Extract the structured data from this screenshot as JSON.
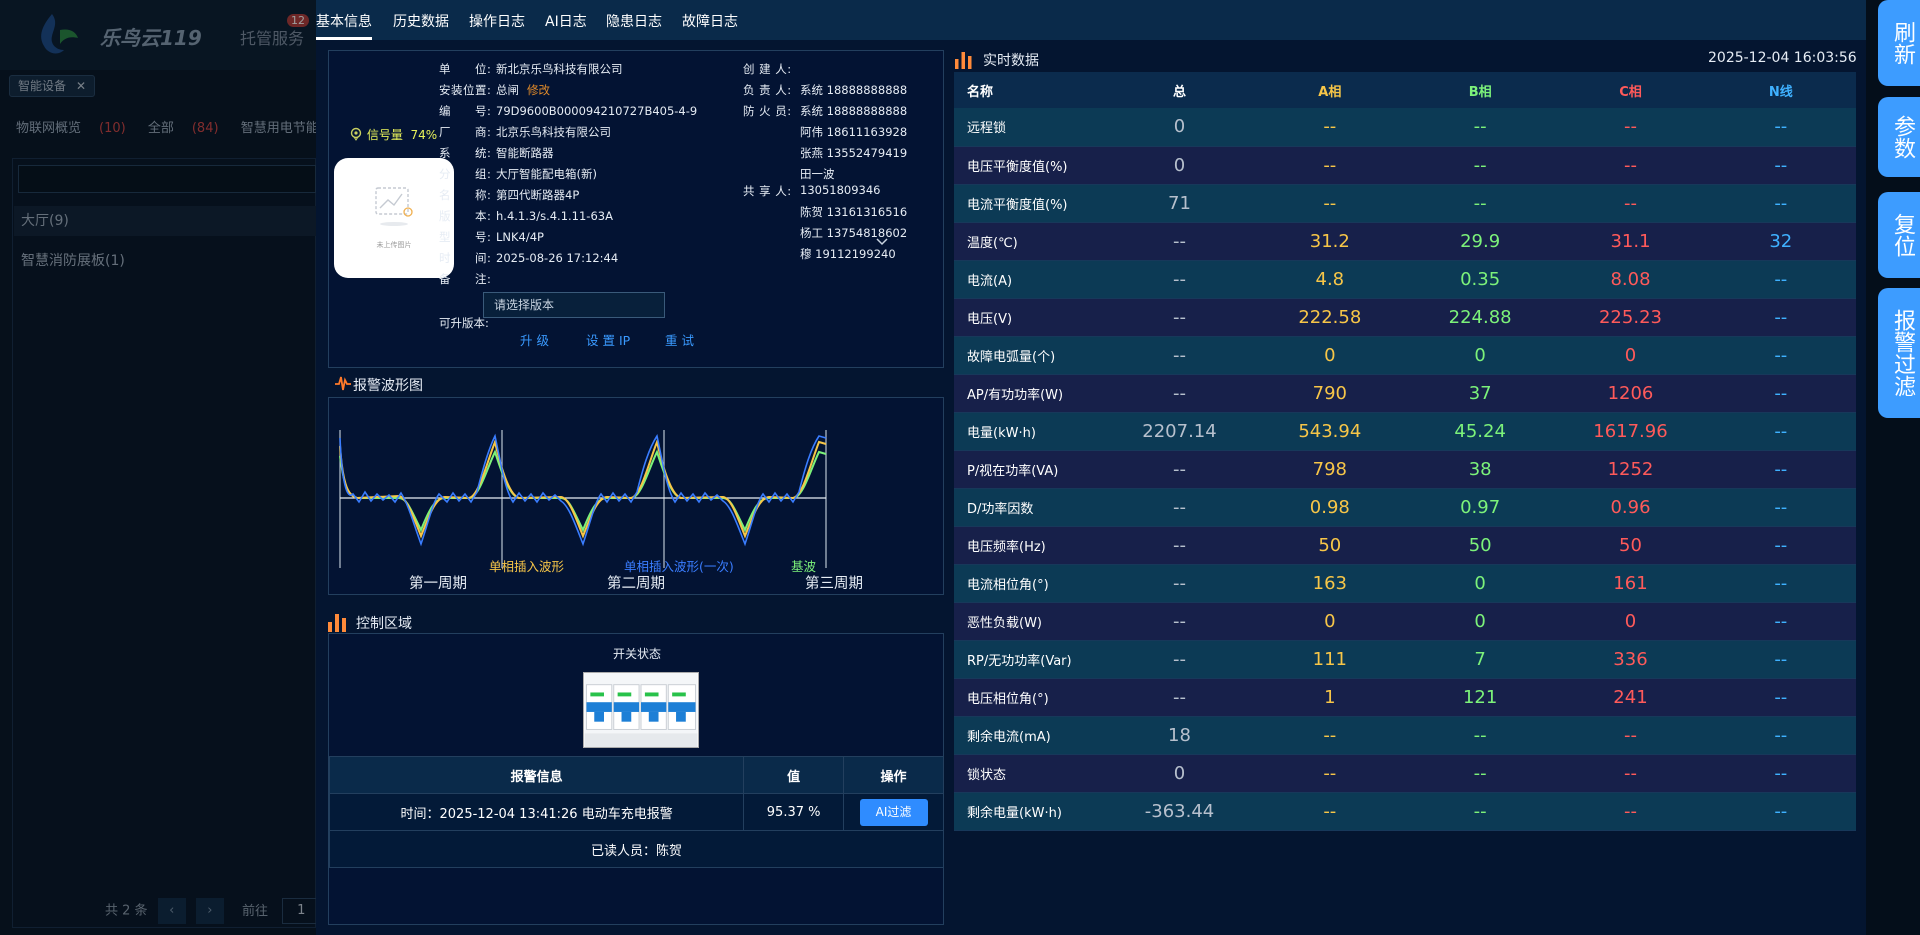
{
  "background": {
    "brand": "乐鸟云119",
    "nav_item": "托管服务",
    "nav_count": "12",
    "tag": "智能设备",
    "tabs": [
      {
        "label": "物联网概览",
        "count": "(10)"
      },
      {
        "label": "全部",
        "count": "(84)"
      },
      {
        "label": "智慧用电节能",
        "count": ""
      }
    ],
    "group": "大厅(9)",
    "item": "智慧消防展板(1)",
    "pager": {
      "total": "共 2 条",
      "goto": "前往",
      "page": "1"
    }
  },
  "tabs": [
    "基本信息",
    "历史数据",
    "操作日志",
    "AI日志",
    "隐患日志",
    "故障日志"
  ],
  "active_tab": "基本信息",
  "device": {
    "signal_label": "信号量",
    "signal_value": "74%",
    "photo_caption": "未上传图片",
    "fields": [
      {
        "label": "单　　位:",
        "value": "新北京乐鸟科技有限公司"
      },
      {
        "label": "安装位置:",
        "value": "总闸"
      },
      {
        "label": "编　　号:",
        "value": "79D9600B000094210727B405-4-9"
      },
      {
        "label": "厂　　商:",
        "value": "北京乐鸟科技有限公司"
      },
      {
        "label": "系　　统:",
        "value": "智能断路器"
      },
      {
        "label": "分　　组:",
        "value": "大厅智能配电箱(新)"
      },
      {
        "label": "名　　称:",
        "value": "第四代断路器4P"
      },
      {
        "label": "版　　本:",
        "value": "h.4.1.3/s.4.1.11-63A"
      },
      {
        "label": "型　　号:",
        "value": "LNK4/4P"
      },
      {
        "label": "时　　间:",
        "value": "2025-08-26 17:12:44"
      },
      {
        "label": "备　　注:",
        "value": ""
      }
    ],
    "edit_link": "修改",
    "right_fields": [
      {
        "label": "创 建 人:",
        "value": ""
      },
      {
        "label": "负 责 人:",
        "value": "系统 18888888888"
      },
      {
        "label": "防 火 员:",
        "value": "系统 18888888888"
      }
    ],
    "fire_officers_more": [
      "阿伟 18611163928",
      "张燕 13552479419",
      "田一波",
      "13051809346"
    ],
    "sharer_label": "共 享 人:",
    "sharers": [
      "陈贺 13161316516",
      "杨工 13754818602",
      "穆 19112199240"
    ],
    "upgradable_label": "可升版本:",
    "version_placeholder": "请选择版本",
    "actions": [
      "升 级",
      "设 置 IP",
      "重 试"
    ]
  },
  "waveform": {
    "title": "报警波形图",
    "legend": [
      {
        "label": "单相插入波形",
        "color": "#f7c648"
      },
      {
        "label": "单相插入波形(一次)",
        "color": "#3a7dff"
      },
      {
        "label": "基波",
        "color": "#7cf27a"
      }
    ],
    "periods": [
      "第一周期",
      "第二周期",
      "第三周期"
    ]
  },
  "control": {
    "title": "控制区域",
    "switch_label": "开关状态",
    "alarm_headers": [
      "报警信息",
      "值",
      "操作"
    ],
    "alarm_rows": [
      {
        "info": "时间：2025-12-04 13:41:26 电动车充电报警",
        "value": "95.37 %",
        "action": "AI过滤"
      }
    ],
    "reader_text": "已读人员：陈贺"
  },
  "realtime": {
    "title": "实时数据",
    "timestamp": "2025-12-04 16:03:56",
    "headers": [
      "名称",
      "总",
      "A相",
      "B相",
      "C相",
      "N线"
    ],
    "rows": [
      [
        "远程锁",
        "0",
        "--",
        "--",
        "--",
        "--"
      ],
      [
        "电压平衡度值(%)",
        "0",
        "--",
        "--",
        "--",
        "--"
      ],
      [
        "电流平衡度值(%)",
        "71",
        "--",
        "--",
        "--",
        "--"
      ],
      [
        "温度(℃)",
        "--",
        "31.2",
        "29.9",
        "31.1",
        "32"
      ],
      [
        "电流(A)",
        "--",
        "4.8",
        "0.35",
        "8.08",
        "--"
      ],
      [
        "电压(V)",
        "--",
        "222.58",
        "224.88",
        "225.23",
        "--"
      ],
      [
        "故障电弧量(个)",
        "--",
        "0",
        "0",
        "0",
        "--"
      ],
      [
        "AP/有功功率(W)",
        "--",
        "790",
        "37",
        "1206",
        "--"
      ],
      [
        "电量(kW·h)",
        "2207.14",
        "543.94",
        "45.24",
        "1617.96",
        "--"
      ],
      [
        "P/视在功率(VA)",
        "--",
        "798",
        "38",
        "1252",
        "--"
      ],
      [
        "D/功率因数",
        "--",
        "0.98",
        "0.97",
        "0.96",
        "--"
      ],
      [
        "电压频率(Hz)",
        "--",
        "50",
        "50",
        "50",
        "--"
      ],
      [
        "电流相位角(°)",
        "--",
        "163",
        "0",
        "161",
        "--"
      ],
      [
        "恶性负载(W)",
        "--",
        "0",
        "0",
        "0",
        "--"
      ],
      [
        "RP/无功功率(Var)",
        "--",
        "111",
        "7",
        "336",
        "--"
      ],
      [
        "电压相位角(°)",
        "--",
        "1",
        "121",
        "241",
        "--"
      ],
      [
        "剩余电流(mA)",
        "18",
        "--",
        "--",
        "--",
        "--"
      ],
      [
        "锁状态",
        "0",
        "--",
        "--",
        "--",
        "--"
      ],
      [
        "剩余电量(kW·h)",
        "-363.44",
        "--",
        "--",
        "--",
        "--"
      ]
    ]
  },
  "side_buttons": [
    "刷新",
    "参数",
    "复位",
    "报警过滤"
  ]
}
